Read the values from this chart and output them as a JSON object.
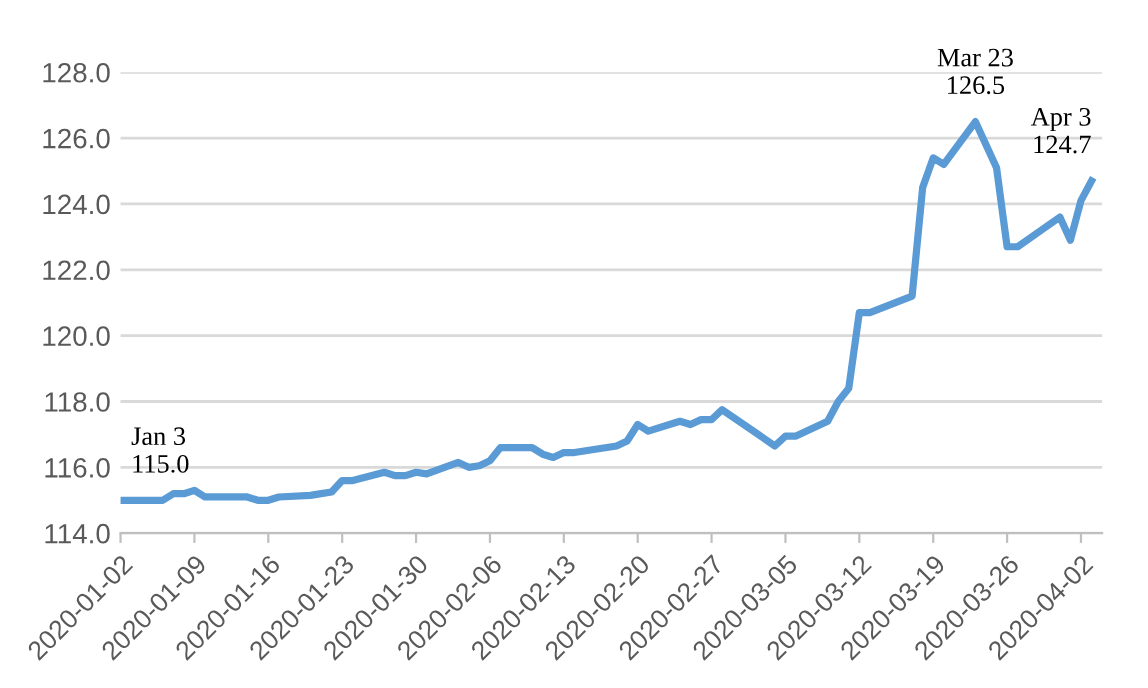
{
  "chart_data": {
    "type": "line",
    "x": [
      "2020-01-02",
      "2020-01-03",
      "2020-01-06",
      "2020-01-07",
      "2020-01-08",
      "2020-01-09",
      "2020-01-10",
      "2020-01-13",
      "2020-01-14",
      "2020-01-15",
      "2020-01-16",
      "2020-01-17",
      "2020-01-20",
      "2020-01-21",
      "2020-01-22",
      "2020-01-23",
      "2020-01-24",
      "2020-01-27",
      "2020-01-28",
      "2020-01-29",
      "2020-01-30",
      "2020-01-31",
      "2020-02-03",
      "2020-02-04",
      "2020-02-05",
      "2020-02-06",
      "2020-02-07",
      "2020-02-10",
      "2020-02-11",
      "2020-02-12",
      "2020-02-13",
      "2020-02-14",
      "2020-02-18",
      "2020-02-19",
      "2020-02-20",
      "2020-02-21",
      "2020-02-24",
      "2020-02-25",
      "2020-02-26",
      "2020-02-27",
      "2020-02-28",
      "2020-03-04",
      "2020-03-05",
      "2020-03-06",
      "2020-03-09",
      "2020-03-10",
      "2020-03-11",
      "2020-03-12",
      "2020-03-13",
      "2020-03-17",
      "2020-03-18",
      "2020-03-19",
      "2020-03-20",
      "2020-03-23",
      "2020-03-25",
      "2020-03-26",
      "2020-03-27",
      "2020-03-31",
      "2020-04-01",
      "2020-04-02",
      "2020-04-03"
    ],
    "series": [
      {
        "color": "#5b9bd5",
        "values": [
          115.0,
          115.0,
          115.0,
          115.2,
          115.2,
          115.3,
          115.1,
          115.1,
          115.1,
          115.0,
          115.0,
          115.1,
          115.15,
          115.2,
          115.25,
          115.6,
          115.6,
          115.85,
          115.75,
          115.75,
          115.85,
          115.8,
          116.15,
          116.0,
          116.05,
          116.2,
          116.6,
          116.6,
          116.4,
          116.3,
          116.45,
          116.45,
          116.65,
          116.8,
          117.3,
          117.1,
          117.4,
          117.3,
          117.45,
          117.45,
          117.75,
          116.65,
          116.95,
          116.95,
          117.4,
          118.0,
          118.4,
          120.7,
          120.7,
          121.2,
          124.5,
          125.4,
          125.2,
          126.5,
          125.1,
          122.7,
          122.7,
          123.6,
          122.9,
          124.1,
          124.7
        ]
      }
    ],
    "xlim": [
      "2020-01-02",
      "2020-04-04"
    ],
    "xticks": [
      "2020-01-02",
      "2020-01-09",
      "2020-01-16",
      "2020-01-23",
      "2020-01-30",
      "2020-02-06",
      "2020-02-13",
      "2020-02-20",
      "2020-02-27",
      "2020-03-05",
      "2020-03-12",
      "2020-03-19",
      "2020-03-26",
      "2020-04-02"
    ],
    "ylim": [
      114,
      128
    ],
    "yticks": [
      {
        "value": 114,
        "label": "114.0"
      },
      {
        "value": 116,
        "label": "116.0"
      },
      {
        "value": 118,
        "label": "118.0"
      },
      {
        "value": 120,
        "label": "120.0"
      },
      {
        "value": 122,
        "label": "122.0"
      },
      {
        "value": 124,
        "label": "124.0"
      },
      {
        "value": 126,
        "label": "126.0"
      },
      {
        "value": 128,
        "label": "128.0"
      }
    ],
    "grid": "y",
    "annotations": [
      {
        "text": "Jan 3\n115.0",
        "x": "2020-01-03",
        "y": 115.0
      },
      {
        "text": "Mar 23\n126.5",
        "x": "2020-03-23",
        "y": 126.5
      },
      {
        "text": "Apr 3\n124.7",
        "x": "2020-04-03",
        "y": 124.7
      }
    ]
  }
}
